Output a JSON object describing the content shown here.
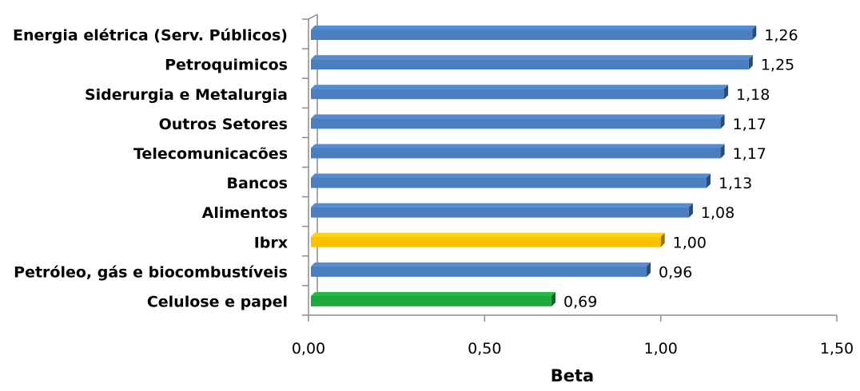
{
  "chart_data": {
    "type": "bar",
    "orientation": "horizontal",
    "title": "",
    "xlabel": "Beta",
    "ylabel": "",
    "xlim": [
      0,
      1.5
    ],
    "x_ticks": [
      0,
      0.5,
      1.0,
      1.5
    ],
    "x_tick_labels": [
      "0,00",
      "0,50",
      "1,00",
      "1,50"
    ],
    "grid": false,
    "legend": "none",
    "categories": [
      "Energia elétrica (Serv. Públicos)",
      "Petroquimicos",
      "Siderurgia e Metalurgia",
      "Outros Setores",
      "Telecomunicacões",
      "Bancos",
      "Alimentos",
      "Ibrx",
      "Petróleo, gás e biocombustíveis",
      "Celulose e papel"
    ],
    "values": [
      1.26,
      1.25,
      1.18,
      1.17,
      1.17,
      1.13,
      1.08,
      1.0,
      0.96,
      0.69
    ],
    "value_labels": [
      "1,26",
      "1,25",
      "1,18",
      "1,17",
      "1,17",
      "1,13",
      "1,08",
      "1,00",
      "0,96",
      "0,69"
    ],
    "bar_colors": [
      "#4a7ebf",
      "#4a7ebf",
      "#4a7ebf",
      "#4a7ebf",
      "#4a7ebf",
      "#4a7ebf",
      "#4a7ebf",
      "#ffc000",
      "#4a7ebf",
      "#1fa83f"
    ]
  },
  "colors": {
    "blue": "#4a7ebf",
    "yellow": "#ffc000",
    "green": "#1fa83f",
    "axis": "#8c8c8c"
  }
}
